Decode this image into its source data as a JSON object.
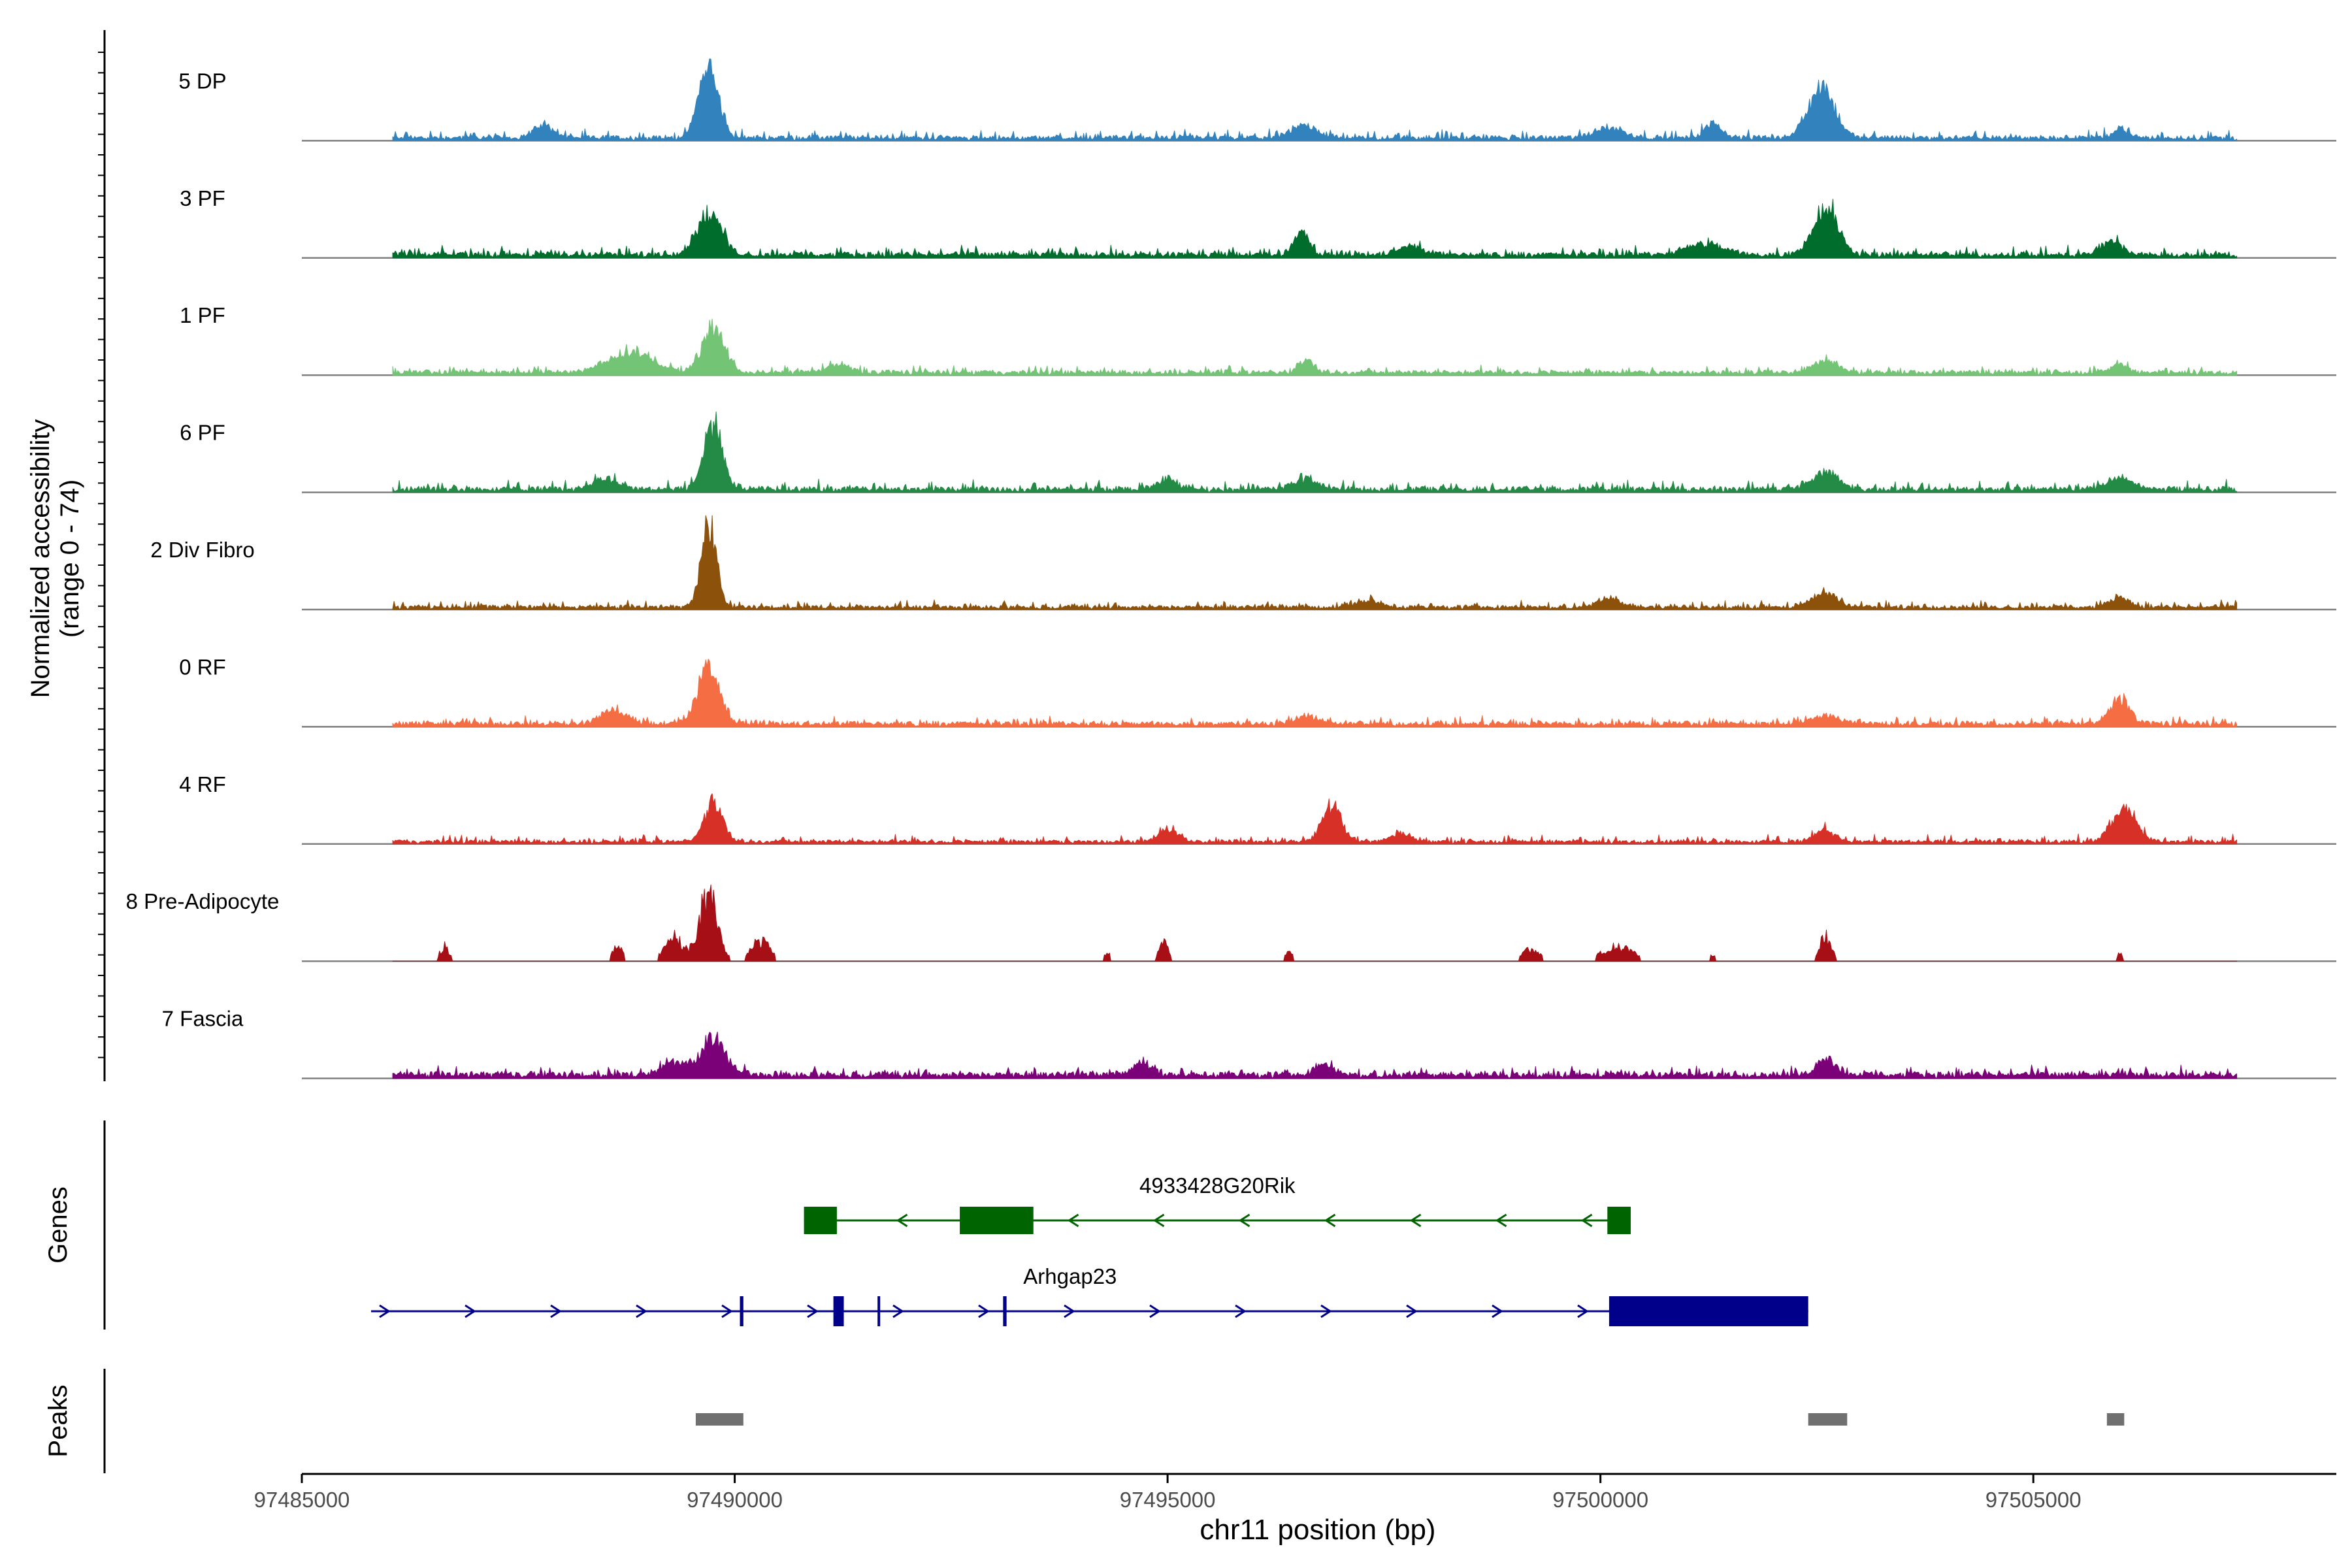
{
  "chart_data": {
    "type": "coverage-track",
    "y_axis_title": "Normalized accessibility",
    "y_axis_range_label": "(range 0 - 74)",
    "y_range": [
      0,
      74
    ],
    "x_axis_title": "chr11 position (bp)",
    "x_range": [
      97485000,
      97508500
    ],
    "x_ticks": [
      97485000,
      97490000,
      97495000,
      97500000,
      97505000
    ],
    "x_tick_labels": [
      "97485000",
      "97490000",
      "97495000",
      "97500000",
      "97505000"
    ],
    "track_start": 97486050,
    "track_end": 97507350,
    "tracks": [
      {
        "name": "5 DP",
        "color": "#3182bd",
        "base": 0.06,
        "noise": 0.05,
        "peaks": [
          [
            97489700,
            1.0,
            160
          ],
          [
            97502550,
            0.7,
            220
          ],
          [
            97487800,
            0.18,
            160
          ],
          [
            97496600,
            0.18,
            200
          ],
          [
            97500100,
            0.14,
            250
          ],
          [
            97501300,
            0.2,
            150
          ],
          [
            97506000,
            0.14,
            120
          ]
        ]
      },
      {
        "name": "3 PF",
        "color": "#006d2c",
        "base": 0.07,
        "noise": 0.05,
        "peaks": [
          [
            97489700,
            0.6,
            200
          ],
          [
            97502600,
            0.7,
            200
          ],
          [
            97496550,
            0.35,
            120
          ],
          [
            97505900,
            0.2,
            150
          ],
          [
            97501200,
            0.16,
            300
          ],
          [
            97497800,
            0.12,
            200
          ]
        ]
      },
      {
        "name": "1 PF",
        "color": "#74c476",
        "base": 0.06,
        "noise": 0.04,
        "peaks": [
          [
            97489750,
            0.65,
            180
          ],
          [
            97488800,
            0.3,
            350
          ],
          [
            97496600,
            0.18,
            120
          ],
          [
            97502600,
            0.17,
            200
          ],
          [
            97506000,
            0.12,
            120
          ],
          [
            97491200,
            0.1,
            200
          ]
        ]
      },
      {
        "name": "6 PF",
        "color": "#238b45",
        "base": 0.07,
        "noise": 0.05,
        "peaks": [
          [
            97489750,
            0.9,
            150
          ],
          [
            97488500,
            0.15,
            200
          ],
          [
            97502600,
            0.25,
            200
          ],
          [
            97495000,
            0.15,
            150
          ],
          [
            97496600,
            0.14,
            200
          ],
          [
            97506000,
            0.17,
            200
          ]
        ]
      },
      {
        "name": "2 Div Fibro",
        "color": "#8c510a",
        "base": 0.05,
        "noise": 0.04,
        "peaks": [
          [
            97489700,
            1.25,
            120
          ],
          [
            97502600,
            0.2,
            200
          ],
          [
            97506000,
            0.15,
            150
          ],
          [
            97500100,
            0.12,
            200
          ],
          [
            97497300,
            0.1,
            200
          ]
        ]
      },
      {
        "name": "0 RF",
        "color": "#f46d43",
        "base": 0.07,
        "noise": 0.04,
        "peaks": [
          [
            97489700,
            0.8,
            180
          ],
          [
            97488600,
            0.2,
            200
          ],
          [
            97506000,
            0.38,
            150
          ],
          [
            97502600,
            0.12,
            200
          ],
          [
            97496600,
            0.1,
            200
          ]
        ]
      },
      {
        "name": "4 RF",
        "color": "#d73027",
        "base": 0.05,
        "noise": 0.04,
        "peaks": [
          [
            97489750,
            0.55,
            150
          ],
          [
            97496900,
            0.55,
            150
          ],
          [
            97506050,
            0.45,
            200
          ],
          [
            97495000,
            0.18,
            150
          ],
          [
            97502600,
            0.18,
            150
          ],
          [
            97497700,
            0.12,
            150
          ]
        ]
      },
      {
        "name": "8 Pre-Adipocyte",
        "color": "#a50f15",
        "base": 0.0,
        "noise": 0.0,
        "blocky": true,
        "peaks": [
          [
            97489700,
            1.2,
            150
          ],
          [
            97489300,
            0.4,
            150
          ],
          [
            97490300,
            0.35,
            150
          ],
          [
            97486650,
            0.25,
            80
          ],
          [
            97488650,
            0.25,
            80
          ],
          [
            97494950,
            0.3,
            80
          ],
          [
            97502600,
            0.4,
            100
          ],
          [
            97500200,
            0.25,
            250
          ],
          [
            97499200,
            0.2,
            150
          ],
          [
            97496400,
            0.15,
            80
          ],
          [
            97494300,
            0.15,
            60
          ],
          [
            97501300,
            0.12,
            60
          ],
          [
            97506000,
            0.12,
            60
          ]
        ]
      },
      {
        "name": "7 Fascia",
        "color": "#7a0177",
        "base": 0.08,
        "noise": 0.05,
        "peaks": [
          [
            97489750,
            0.5,
            200
          ],
          [
            97489300,
            0.2,
            200
          ],
          [
            97502600,
            0.25,
            150
          ],
          [
            97494700,
            0.18,
            150
          ],
          [
            97496800,
            0.15,
            150
          ]
        ]
      }
    ],
    "genes_panel_title": "Genes",
    "genes": [
      {
        "name": "4933428G20Rik",
        "strand": "-",
        "start": 97490800,
        "end": 97500350,
        "color": "#006400",
        "exons": [
          [
            97490800,
            97491180
          ],
          [
            97492600,
            97493450
          ],
          [
            97500080,
            97500350
          ]
        ]
      },
      {
        "name": "Arhgap23",
        "strand": "+",
        "start": 97485800,
        "end": 97502400,
        "color": "#00008b",
        "exons": [
          [
            97490060,
            97490100
          ],
          [
            97491140,
            97491260
          ],
          [
            97491650,
            97491680
          ],
          [
            97493100,
            97493140
          ],
          [
            97500100,
            97502400
          ]
        ]
      }
    ],
    "peaks_panel_title": "Peaks",
    "peaks": [
      [
        97489550,
        97490100
      ],
      [
        97502400,
        97502850
      ],
      [
        97505850,
        97506050
      ]
    ],
    "peak_color": "#707070"
  }
}
